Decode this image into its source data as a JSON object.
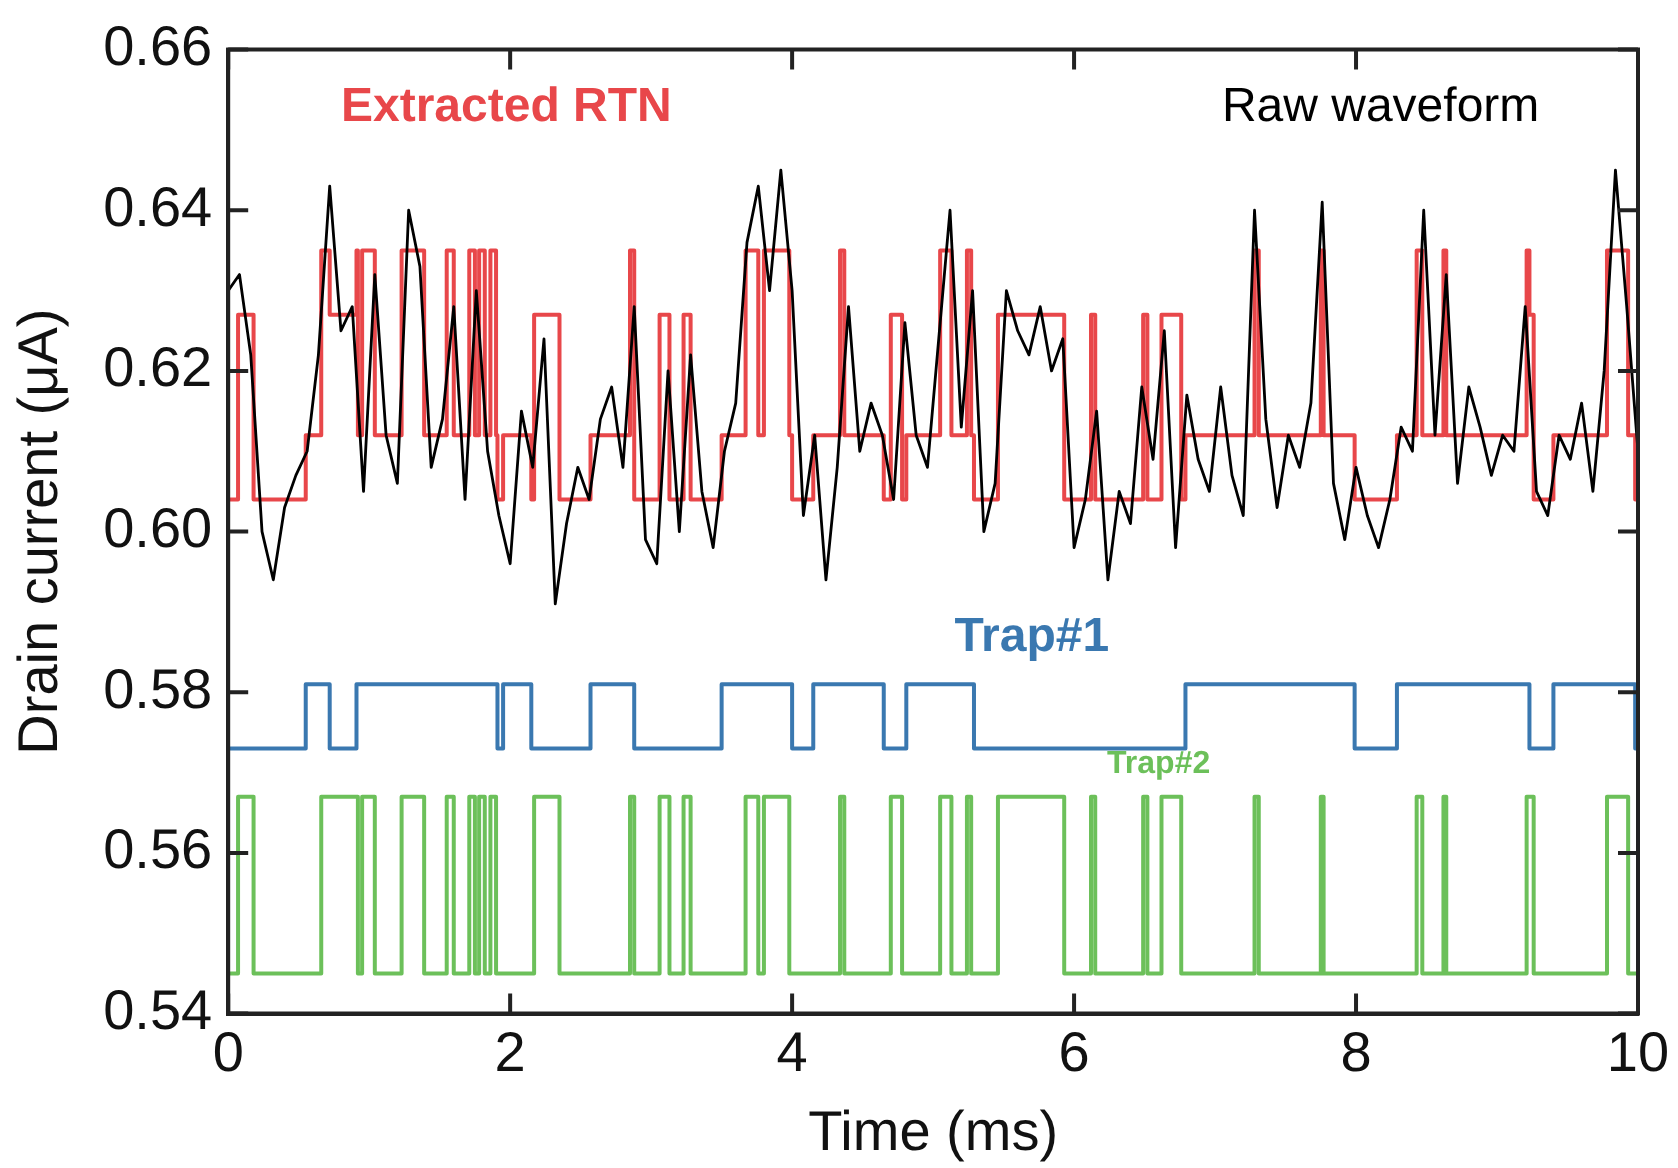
{
  "chart_data": {
    "type": "line",
    "xlabel": "Time (ms)",
    "ylabel": "Drain current (μA)",
    "xlim": [
      0,
      10
    ],
    "ylim": [
      0.54,
      0.66
    ],
    "xticks": [
      0,
      2,
      4,
      6,
      8,
      10
    ],
    "yticks": [
      {
        "value": 0.54,
        "label": "0.54"
      },
      {
        "value": 0.56,
        "label": "0.56"
      },
      {
        "value": 0.58,
        "label": "0.58"
      },
      {
        "value": 0.6,
        "label": "0.60"
      },
      {
        "value": 0.62,
        "label": "0.62"
      },
      {
        "value": 0.64,
        "label": "0.64"
      },
      {
        "value": 0.66,
        "label": "0.66"
      }
    ],
    "marker": "none",
    "series": [
      {
        "name": "Raw waveform",
        "type": "line",
        "color": "#000000",
        "x": [
          0,
          0.08,
          0.16,
          0.24,
          0.32,
          0.4,
          0.48,
          0.56,
          0.64,
          0.72,
          0.8,
          0.88,
          0.96,
          1.04,
          1.12,
          1.2,
          1.28,
          1.36,
          1.44,
          1.52,
          1.6,
          1.68,
          1.76,
          1.84,
          1.92,
          2,
          2.08,
          2.16,
          2.24,
          2.32,
          2.4,
          2.48,
          2.56,
          2.64,
          2.72,
          2.8,
          2.88,
          2.96,
          3.04,
          3.12,
          3.2,
          3.28,
          3.36,
          3.44,
          3.52,
          3.6,
          3.68,
          3.76,
          3.84,
          3.92,
          4,
          4.08,
          4.16,
          4.24,
          4.32,
          4.4,
          4.48,
          4.56,
          4.64,
          4.72,
          4.8,
          4.88,
          4.96,
          5.04,
          5.12,
          5.2,
          5.28,
          5.36,
          5.44,
          5.52,
          5.6,
          5.68,
          5.76,
          5.84,
          5.92,
          6,
          6.08,
          6.16,
          6.24,
          6.32,
          6.4,
          6.48,
          6.56,
          6.64,
          6.72,
          6.8,
          6.88,
          6.96,
          7.04,
          7.12,
          7.2,
          7.28,
          7.36,
          7.44,
          7.52,
          7.6,
          7.68,
          7.76,
          7.84,
          7.92,
          8,
          8.08,
          8.16,
          8.24,
          8.32,
          8.4,
          8.48,
          8.56,
          8.64,
          8.72,
          8.8,
          8.88,
          8.96,
          9.04,
          9.12,
          9.2,
          9.28,
          9.36,
          9.44,
          9.52,
          9.6,
          9.68,
          9.76,
          9.84,
          9.92,
          10
        ],
        "values": [
          0.63,
          0.632,
          0.622,
          0.6,
          0.594,
          0.603,
          0.607,
          0.61,
          0.622,
          0.643,
          0.625,
          0.628,
          0.605,
          0.632,
          0.612,
          0.606,
          0.64,
          0.633,
          0.608,
          0.614,
          0.628,
          0.604,
          0.63,
          0.61,
          0.602,
          0.596,
          0.615,
          0.608,
          0.624,
          0.591,
          0.601,
          0.608,
          0.604,
          0.614,
          0.618,
          0.608,
          0.628,
          0.599,
          0.596,
          0.62,
          0.6,
          0.622,
          0.605,
          0.598,
          0.61,
          0.616,
          0.636,
          0.643,
          0.63,
          0.645,
          0.63,
          0.602,
          0.612,
          0.594,
          0.608,
          0.628,
          0.61,
          0.616,
          0.612,
          0.604,
          0.626,
          0.612,
          0.608,
          0.624,
          0.64,
          0.613,
          0.63,
          0.6,
          0.606,
          0.63,
          0.625,
          0.622,
          0.628,
          0.62,
          0.624,
          0.598,
          0.604,
          0.615,
          0.594,
          0.605,
          0.601,
          0.618,
          0.609,
          0.625,
          0.598,
          0.617,
          0.609,
          0.605,
          0.618,
          0.607,
          0.602,
          0.64,
          0.614,
          0.603,
          0.612,
          0.608,
          0.616,
          0.641,
          0.606,
          0.599,
          0.608,
          0.602,
          0.598,
          0.604,
          0.613,
          0.61,
          0.64,
          0.612,
          0.632,
          0.606,
          0.618,
          0.613,
          0.607,
          0.612,
          0.61,
          0.628,
          0.605,
          0.602,
          0.612,
          0.609,
          0.616,
          0.605,
          0.62,
          0.645,
          0.628,
          0.61
        ]
      },
      {
        "name": "Extracted RTN",
        "type": "step",
        "color": "#e8474a",
        "x": [
          0,
          0.07,
          0.18,
          0.55,
          0.66,
          0.72,
          0.91,
          0.92,
          0.95,
          1.04,
          1.23,
          1.39,
          1.55,
          1.6,
          1.71,
          1.75,
          1.78,
          1.82,
          1.86,
          1.9,
          1.91,
          1.95,
          2.15,
          2.17,
          2.35,
          2.57,
          2.85,
          2.88,
          3.06,
          3.13,
          3.23,
          3.28,
          3.5,
          3.67,
          3.76,
          3.8,
          3.98,
          4,
          4.15,
          4.34,
          4.37,
          4.65,
          4.7,
          4.78,
          4.81,
          5.05,
          5.13,
          5.24,
          5.27,
          5.29,
          5.46,
          5.93,
          6.12,
          6.15,
          6.49,
          6.52,
          6.62,
          6.76,
          6.79,
          7.28,
          7.31,
          7.75,
          7.77,
          7.99,
          8.29,
          8.43,
          8.47,
          8.62,
          8.64,
          9.21,
          9.23,
          9.26,
          9.4,
          9.78,
          9.93,
          9.98,
          10
        ],
        "values": [
          0.604,
          0.627,
          0.604,
          0.612,
          0.635,
          0.627,
          0.635,
          0.612,
          0.635,
          0.612,
          0.635,
          0.612,
          0.635,
          0.612,
          0.635,
          0.612,
          0.635,
          0.612,
          0.635,
          0.612,
          0.604,
          0.612,
          0.604,
          0.627,
          0.604,
          0.612,
          0.635,
          0.604,
          0.627,
          0.604,
          0.627,
          0.604,
          0.612,
          0.635,
          0.612,
          0.635,
          0.612,
          0.604,
          0.612,
          0.635,
          0.612,
          0.604,
          0.627,
          0.604,
          0.612,
          0.635,
          0.612,
          0.635,
          0.612,
          0.604,
          0.627,
          0.604,
          0.627,
          0.604,
          0.627,
          0.604,
          0.627,
          0.604,
          0.612,
          0.635,
          0.612,
          0.635,
          0.612,
          0.604,
          0.612,
          0.635,
          0.612,
          0.635,
          0.612,
          0.635,
          0.627,
          0.604,
          0.612,
          0.635,
          0.612,
          0.604,
          0.604
        ]
      },
      {
        "name": "Trap#1",
        "type": "step",
        "color": "#3a78b0",
        "x": [
          0,
          0.55,
          0.72,
          0.91,
          1.91,
          1.95,
          2.15,
          2.57,
          2.88,
          3.5,
          4,
          4.15,
          4.65,
          4.81,
          5.29,
          6.79,
          7.99,
          8.29,
          9.23,
          9.4,
          9.98,
          10
        ],
        "values": [
          0.573,
          0.581,
          0.573,
          0.581,
          0.573,
          0.581,
          0.573,
          0.581,
          0.573,
          0.581,
          0.573,
          0.581,
          0.573,
          0.581,
          0.573,
          0.581,
          0.573,
          0.581,
          0.573,
          0.581,
          0.573,
          0.573
        ]
      },
      {
        "name": "Trap#2",
        "type": "step",
        "color": "#6cc05a",
        "x": [
          0,
          0.07,
          0.18,
          0.66,
          0.92,
          0.95,
          1.04,
          1.23,
          1.39,
          1.55,
          1.6,
          1.71,
          1.75,
          1.78,
          1.82,
          1.86,
          1.9,
          2.17,
          2.35,
          2.85,
          2.88,
          3.06,
          3.13,
          3.23,
          3.28,
          3.67,
          3.76,
          3.8,
          3.98,
          4.34,
          4.37,
          4.7,
          4.78,
          5.05,
          5.13,
          5.24,
          5.27,
          5.46,
          5.93,
          6.12,
          6.15,
          6.49,
          6.52,
          6.62,
          6.76,
          7.28,
          7.31,
          7.75,
          7.77,
          8.43,
          8.47,
          8.62,
          8.64,
          9.21,
          9.26,
          9.78,
          9.93,
          10
        ],
        "values": [
          0.545,
          0.567,
          0.545,
          0.567,
          0.545,
          0.567,
          0.545,
          0.567,
          0.545,
          0.567,
          0.545,
          0.567,
          0.545,
          0.567,
          0.545,
          0.567,
          0.545,
          0.567,
          0.545,
          0.567,
          0.545,
          0.567,
          0.545,
          0.567,
          0.545,
          0.567,
          0.545,
          0.567,
          0.545,
          0.567,
          0.545,
          0.567,
          0.545,
          0.567,
          0.545,
          0.567,
          0.545,
          0.567,
          0.545,
          0.567,
          0.545,
          0.567,
          0.545,
          0.567,
          0.545,
          0.567,
          0.545,
          0.567,
          0.545,
          0.567,
          0.545,
          0.567,
          0.545,
          0.567,
          0.545,
          0.567,
          0.545,
          0.545
        ]
      }
    ]
  }
}
